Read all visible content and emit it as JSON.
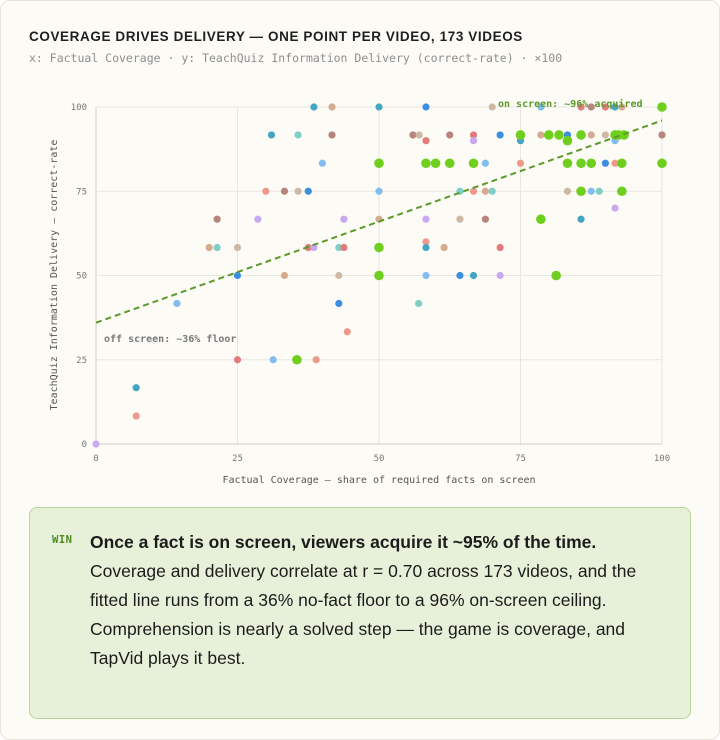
{
  "title": "COVERAGE DRIVES DELIVERY — ONE POINT PER VIDEO, 173 VIDEOS",
  "subtitle": "x: Factual Coverage · y: TeachQuiz Information Delivery (correct-rate) · ×100",
  "colors": {
    "highlight": "#6fcf1e",
    "trend": "#5b9a2a",
    "others": [
      "#ed9a8d",
      "#d5aa8f",
      "#cfb9a4",
      "#c9a9ef",
      "#83bdf0",
      "#7fcfc7",
      "#e47b7b",
      "#45a6c3",
      "#b7857c",
      "#3b8ee0"
    ]
  },
  "chart_data": {
    "type": "scatter",
    "xlabel": "Factual Coverage — share of required facts on screen",
    "ylabel": "TeachQuiz Information Delivery — correct-rate",
    "xlim": [
      0,
      100
    ],
    "ylim": [
      0,
      100
    ],
    "x_ticks": [
      "0",
      "25",
      "50",
      "75",
      "100"
    ],
    "y_ticks": [
      "0",
      "25",
      "50",
      "75",
      "100"
    ],
    "grid": true,
    "trend_line": {
      "from": [
        0,
        36
      ],
      "to": [
        100,
        96
      ],
      "style": "dashed"
    },
    "annotations": [
      {
        "text": "on screen: ~96% acquired"
      },
      {
        "text": "off screen: ~36% floor"
      }
    ],
    "series": [
      {
        "highlight": true,
        "points": [
          [
            35.5,
            25
          ],
          [
            50,
            50
          ],
          [
            50,
            58.3
          ],
          [
            50,
            83.3
          ],
          [
            58.3,
            83.3
          ],
          [
            60,
            83.3
          ],
          [
            62.5,
            83.3
          ],
          [
            66.7,
            83.3
          ],
          [
            75,
            91.7
          ],
          [
            78.6,
            66.7
          ],
          [
            80,
            91.7
          ],
          [
            81.3,
            50
          ],
          [
            81.8,
            91.7
          ],
          [
            83.3,
            83.3
          ],
          [
            83.3,
            90
          ],
          [
            85.7,
            75
          ],
          [
            85.7,
            83.3
          ],
          [
            85.7,
            91.7
          ],
          [
            87.5,
            83.3
          ],
          [
            91.7,
            91.7
          ],
          [
            92.3,
            91.7
          ],
          [
            92.9,
            75
          ],
          [
            92.9,
            83.3
          ],
          [
            93.3,
            91.7
          ],
          [
            100,
            83.3
          ],
          [
            100,
            100
          ]
        ]
      },
      {
        "highlight": false,
        "points": [
          [
            0,
            0
          ],
          [
            7.1,
            8.3
          ],
          [
            7.1,
            16.7
          ],
          [
            14.3,
            41.7
          ],
          [
            20,
            58.3
          ],
          [
            21.4,
            66.7
          ],
          [
            21.4,
            58.3
          ],
          [
            25,
            58.3
          ],
          [
            25,
            50
          ],
          [
            25,
            25
          ],
          [
            28.6,
            66.7
          ],
          [
            30,
            75
          ],
          [
            31,
            91.7
          ],
          [
            31.3,
            25
          ],
          [
            33.3,
            50
          ],
          [
            33.3,
            75
          ],
          [
            35.7,
            91.7
          ],
          [
            35.7,
            75
          ],
          [
            37.5,
            75
          ],
          [
            37.5,
            58.3
          ],
          [
            38.5,
            58.3
          ],
          [
            38.9,
            25
          ],
          [
            38.5,
            100
          ],
          [
            40,
            83.3
          ],
          [
            41.7,
            100
          ],
          [
            41.7,
            91.7
          ],
          [
            42.9,
            58.3
          ],
          [
            42.9,
            50
          ],
          [
            42.9,
            41.7
          ],
          [
            43.8,
            58.3
          ],
          [
            43.8,
            66.7
          ],
          [
            44.4,
            33.3
          ],
          [
            50,
            100
          ],
          [
            50,
            75
          ],
          [
            50,
            66.7
          ],
          [
            56,
            91.7
          ],
          [
            57,
            41.7
          ],
          [
            57.1,
            91.7
          ],
          [
            58.3,
            100
          ],
          [
            58.3,
            90
          ],
          [
            58.3,
            66.7
          ],
          [
            58.3,
            60
          ],
          [
            58.3,
            58.3
          ],
          [
            58.3,
            50
          ],
          [
            61.5,
            58.3
          ],
          [
            62.5,
            91.7
          ],
          [
            64.3,
            75
          ],
          [
            64.3,
            66.7
          ],
          [
            64.3,
            50
          ],
          [
            66.7,
            91.7
          ],
          [
            66.7,
            90
          ],
          [
            66.7,
            75
          ],
          [
            66.7,
            50
          ],
          [
            68.8,
            83.3
          ],
          [
            68.8,
            75
          ],
          [
            68.8,
            66.7
          ],
          [
            70,
            75
          ],
          [
            70,
            100
          ],
          [
            71.4,
            91.7
          ],
          [
            71.4,
            58.3
          ],
          [
            71.4,
            50
          ],
          [
            75,
            83.3
          ],
          [
            75,
            90
          ],
          [
            78.6,
            100
          ],
          [
            78.6,
            91.7
          ],
          [
            80,
            91.7
          ],
          [
            81.8,
            91.7
          ],
          [
            83.3,
            75
          ],
          [
            83.3,
            91.7
          ],
          [
            85.7,
            100
          ],
          [
            85.7,
            91.7
          ],
          [
            85.7,
            83.3
          ],
          [
            85.7,
            66.7
          ],
          [
            87.5,
            75
          ],
          [
            87.5,
            91.7
          ],
          [
            87.5,
            100
          ],
          [
            88.9,
            75
          ],
          [
            90,
            91.7
          ],
          [
            90,
            83.3
          ],
          [
            90,
            100
          ],
          [
            91.7,
            70
          ],
          [
            91.7,
            83.3
          ],
          [
            91.7,
            100
          ],
          [
            91.7,
            90
          ],
          [
            92.9,
            100
          ],
          [
            100,
            91.7
          ]
        ]
      }
    ]
  },
  "callout": {
    "badge": "WIN",
    "headline": "Once a fact is on screen, viewers acquire it ~95% of the time.",
    "line1": "Coverage and delivery correlate at r = 0.70 across 173 videos, and the fitted line runs from a 36% no-fact floor to a 96% on-screen ceiling.",
    "line2": "Comprehension is nearly a solved step — the game is coverage, and TapVid plays it best."
  }
}
